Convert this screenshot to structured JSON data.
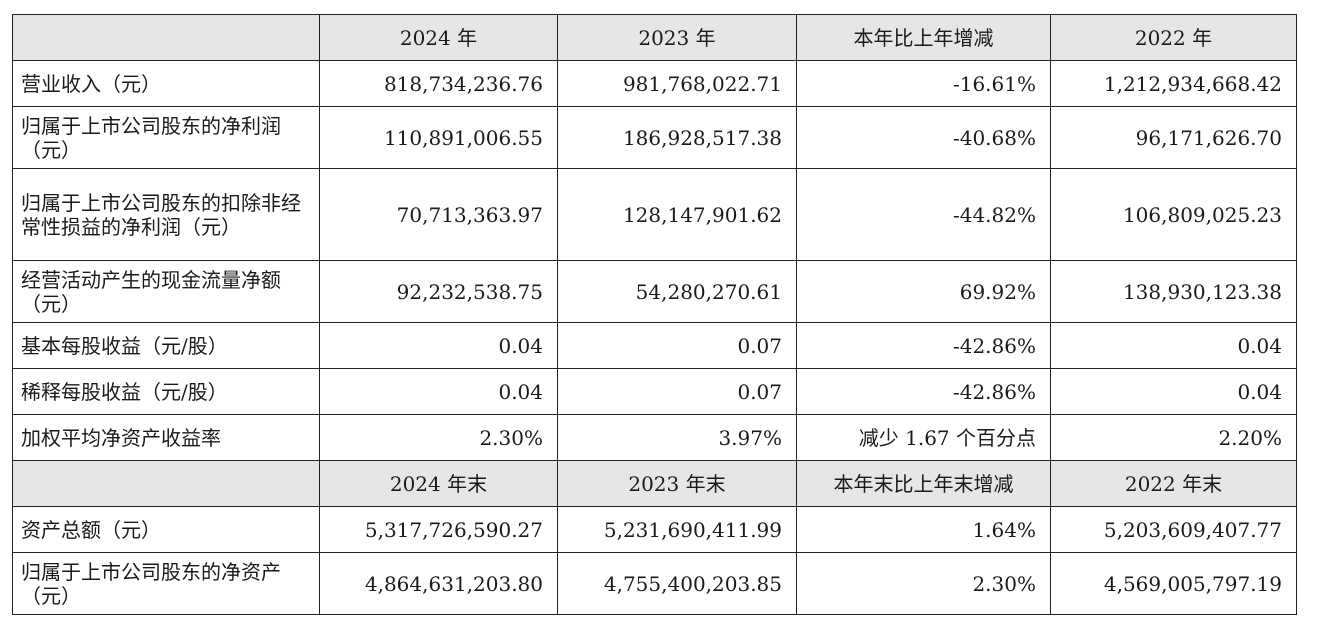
{
  "header1": {
    "col0": "",
    "col1": "2024 年",
    "col2": "2023 年",
    "col3": "本年比上年增减",
    "col4": "2022 年"
  },
  "rows1": [
    {
      "label": "营业收入（元）",
      "v2024": "818,734,236.76",
      "v2023": "981,768,022.71",
      "change": "-16.61%",
      "v2022": "1,212,934,668.42"
    },
    {
      "label": "归属于上市公司股东的净利润（元）",
      "v2024": "110,891,006.55",
      "v2023": "186,928,517.38",
      "change": "-40.68%",
      "v2022": "96,171,626.70"
    },
    {
      "label": "归属于上市公司股东的扣除非经常性损益的净利润（元）",
      "v2024": "70,713,363.97",
      "v2023": "128,147,901.62",
      "change": "-44.82%",
      "v2022": "106,809,025.23"
    },
    {
      "label": "经营活动产生的现金流量净额（元）",
      "v2024": "92,232,538.75",
      "v2023": "54,280,270.61",
      "change": "69.92%",
      "v2022": "138,930,123.38"
    },
    {
      "label": "基本每股收益（元/股）",
      "v2024": "0.04",
      "v2023": "0.07",
      "change": "-42.86%",
      "v2022": "0.04"
    },
    {
      "label": "稀释每股收益（元/股）",
      "v2024": "0.04",
      "v2023": "0.07",
      "change": "-42.86%",
      "v2022": "0.04"
    },
    {
      "label": "加权平均净资产收益率",
      "v2024": "2.30%",
      "v2023": "3.97%",
      "change": "减少 1.67 个百分点",
      "v2022": "2.20%"
    }
  ],
  "header2": {
    "col0": "",
    "col1": "2024 年末",
    "col2": "2023 年末",
    "col3": "本年末比上年末增减",
    "col4": "2022 年末"
  },
  "rows2": [
    {
      "label": "资产总额（元）",
      "v2024": "5,317,726,590.27",
      "v2023": "5,231,690,411.99",
      "change": "1.64%",
      "v2022": "5,203,609,407.77"
    },
    {
      "label": "归属于上市公司股东的净资产（元）",
      "v2024": "4,864,631,203.80",
      "v2023": "4,755,400,203.85",
      "change": "2.30%",
      "v2022": "4,569,005,797.19"
    }
  ]
}
